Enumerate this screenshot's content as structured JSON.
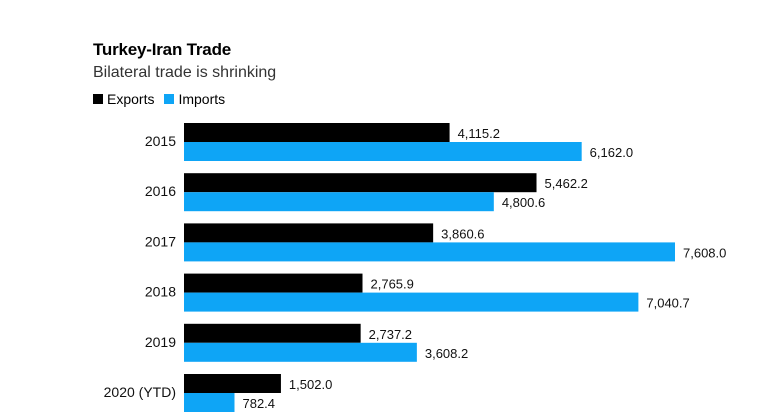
{
  "chart_data": {
    "type": "bar",
    "orientation": "horizontal",
    "title": "Turkey-Iran Trade",
    "subtitle": "Bilateral trade is shrinking",
    "categories": [
      "2015",
      "2016",
      "2017",
      "2018",
      "2019",
      "2020 (YTD)"
    ],
    "series": [
      {
        "name": "Exports",
        "color": "#000000",
        "values": [
          4115.2,
          5462.2,
          3860.6,
          2765.9,
          2737.2,
          1502.0
        ],
        "labels": [
          "4,115.2",
          "5,462.2",
          "3,860.6",
          "2,765.9",
          "2,737.2",
          "1,502.0"
        ]
      },
      {
        "name": "Imports",
        "color": "#0ea5f6",
        "values": [
          6162.0,
          4800.6,
          7608.0,
          7040.7,
          3608.2,
          782.4
        ],
        "labels": [
          "6,162.0",
          "4,800.6",
          "7,608.0",
          "7,040.7",
          "3,608.2",
          "782.4"
        ]
      }
    ],
    "xlim": [
      0,
      7608.0
    ],
    "legend_position": "top-left",
    "grid": false
  }
}
